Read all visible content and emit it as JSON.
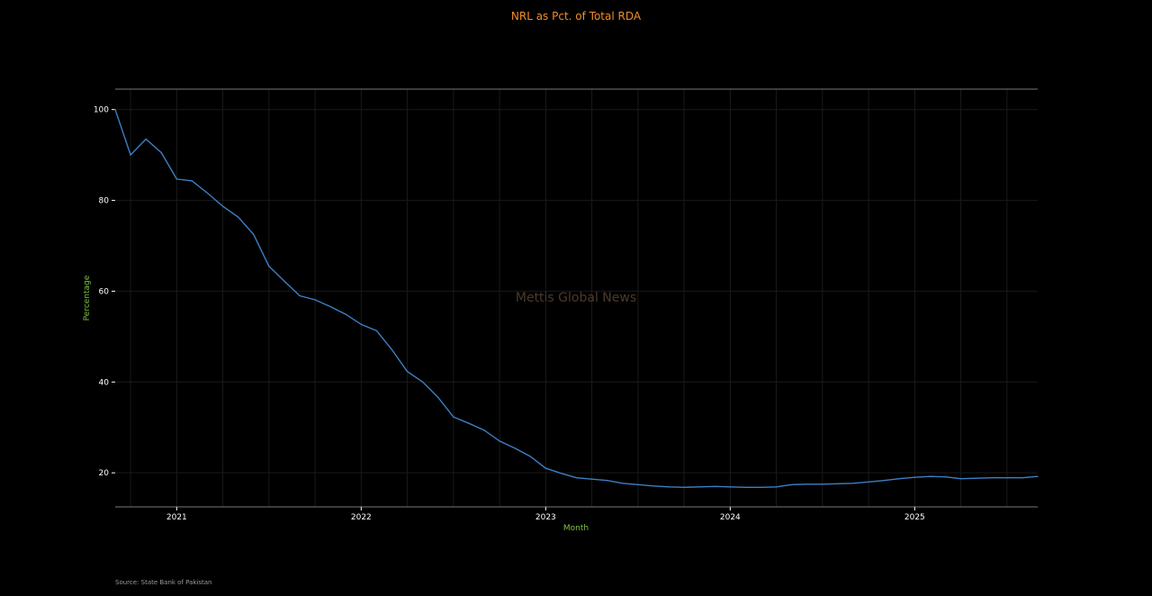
{
  "title": "NRL as Pct. of Total RDA",
  "source_note": "Source: State Bank of Pakistan",
  "watermark": "Mettis Global News",
  "colors": {
    "background": "#000000",
    "title": "#f28c28",
    "axis_label": "#7dc242",
    "line": "#3d7fc4",
    "grid": "#1a1a1a",
    "axis": "#777777"
  },
  "chart_data": {
    "type": "line",
    "title": "NRL as Pct. of Total RDA",
    "xlabel": "Month",
    "ylabel": "Percentage",
    "x_ticks": [
      "2021",
      "2022",
      "2023",
      "2024",
      "2025"
    ],
    "y_ticks": [
      20,
      40,
      60,
      80,
      100
    ],
    "xlim": [
      "2020-09",
      "2025-09"
    ],
    "ylim": [
      12.5,
      104.5
    ],
    "grid": true,
    "series": [
      {
        "x": [
          "2020-09",
          "2020-10",
          "2020-11",
          "2020-12",
          "2021-01",
          "2021-02",
          "2021-03",
          "2021-04",
          "2021-05",
          "2021-06",
          "2021-07",
          "2021-08",
          "2021-09",
          "2021-10",
          "2021-11",
          "2021-12",
          "2022-01",
          "2022-02",
          "2022-03",
          "2022-04",
          "2022-05",
          "2022-06",
          "2022-07",
          "2022-08",
          "2022-09",
          "2022-10",
          "2022-11",
          "2022-12",
          "2023-01",
          "2023-02",
          "2023-03",
          "2023-04",
          "2023-05",
          "2023-06",
          "2023-07",
          "2023-08",
          "2023-09",
          "2023-10",
          "2023-11",
          "2023-12",
          "2024-01",
          "2024-02",
          "2024-03",
          "2024-04",
          "2024-05",
          "2024-06",
          "2024-07",
          "2024-08",
          "2024-09",
          "2024-10",
          "2024-11",
          "2024-12",
          "2025-01",
          "2025-02",
          "2025-03",
          "2025-04",
          "2025-05",
          "2025-06",
          "2025-07",
          "2025-08",
          "2025-09"
        ],
        "values": [
          100.0,
          90.0,
          93.5,
          90.5,
          84.7,
          84.3,
          81.6,
          78.7,
          76.3,
          72.5,
          65.5,
          62.2,
          59.0,
          58.1,
          56.6,
          54.9,
          52.7,
          51.3,
          47.1,
          42.3,
          40.0,
          36.6,
          32.3,
          30.9,
          29.4,
          27.0,
          25.4,
          23.6,
          21.0,
          19.9,
          18.9,
          18.6,
          18.3,
          17.7,
          17.4,
          17.1,
          16.9,
          16.8,
          16.9,
          17.0,
          16.9,
          16.8,
          16.8,
          16.9,
          17.4,
          17.5,
          17.5,
          17.6,
          17.7,
          18.0,
          18.3,
          18.7,
          19.0,
          19.2,
          19.1,
          18.7,
          18.8,
          18.9,
          18.9,
          18.9,
          19.2
        ]
      }
    ]
  }
}
